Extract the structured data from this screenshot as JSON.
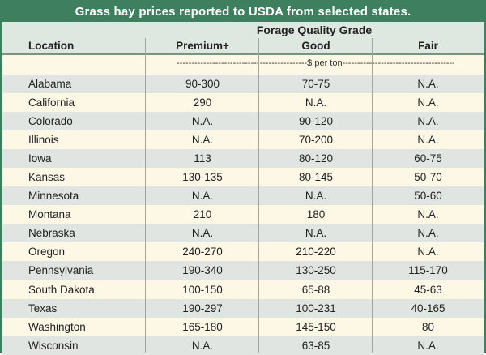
{
  "title": "Grass hay prices reported to USDA from selected states.",
  "headers": {
    "location": "Location",
    "group": "Forage Quality Grade",
    "premium": "Premium+",
    "good": "Good",
    "fair": "Fair"
  },
  "units_label": "--------------------------------------------$ per ton--------------------------------------------",
  "rows": [
    {
      "location": "Alabama",
      "premium": "90-300",
      "good": "70-75",
      "fair": "N.A."
    },
    {
      "location": "California",
      "premium": "290",
      "good": "N.A.",
      "fair": "N.A."
    },
    {
      "location": "Colorado",
      "premium": "N.A.",
      "good": "90-120",
      "fair": "N.A."
    },
    {
      "location": "Illinois",
      "premium": "N.A.",
      "good": "70-200",
      "fair": "N.A."
    },
    {
      "location": "Iowa",
      "premium": "113",
      "good": "80-120",
      "fair": "60-75"
    },
    {
      "location": "Kansas",
      "premium": "130-135",
      "good": "80-145",
      "fair": "50-70"
    },
    {
      "location": "Minnesota",
      "premium": "N.A.",
      "good": "N.A.",
      "fair": "50-60"
    },
    {
      "location": "Montana",
      "premium": "210",
      "good": "180",
      "fair": "N.A."
    },
    {
      "location": "Nebraska",
      "premium": "N.A.",
      "good": "N.A.",
      "fair": "N.A."
    },
    {
      "location": "Oregon",
      "premium": "240-270",
      "good": "210-220",
      "fair": "N.A."
    },
    {
      "location": "Pennsylvania",
      "premium": "190-340",
      "good": "130-250",
      "fair": "115-170"
    },
    {
      "location": "South Dakota",
      "premium": "100-150",
      "good": "65-88",
      "fair": "45-63"
    },
    {
      "location": "Texas",
      "premium": "190-297",
      "good": "100-231",
      "fair": "40-165"
    },
    {
      "location": "Washington",
      "premium": "165-180",
      "good": "145-150",
      "fair": "80"
    },
    {
      "location": "Wisconsin",
      "premium": "N.A.",
      "good": "63-85",
      "fair": "N.A."
    }
  ],
  "colors": {
    "accent": "#3d7f5e",
    "header_bg": "#dfe7e1",
    "stripe_green": "#e0e5e1",
    "stripe_cream": "#fdf7e6"
  }
}
